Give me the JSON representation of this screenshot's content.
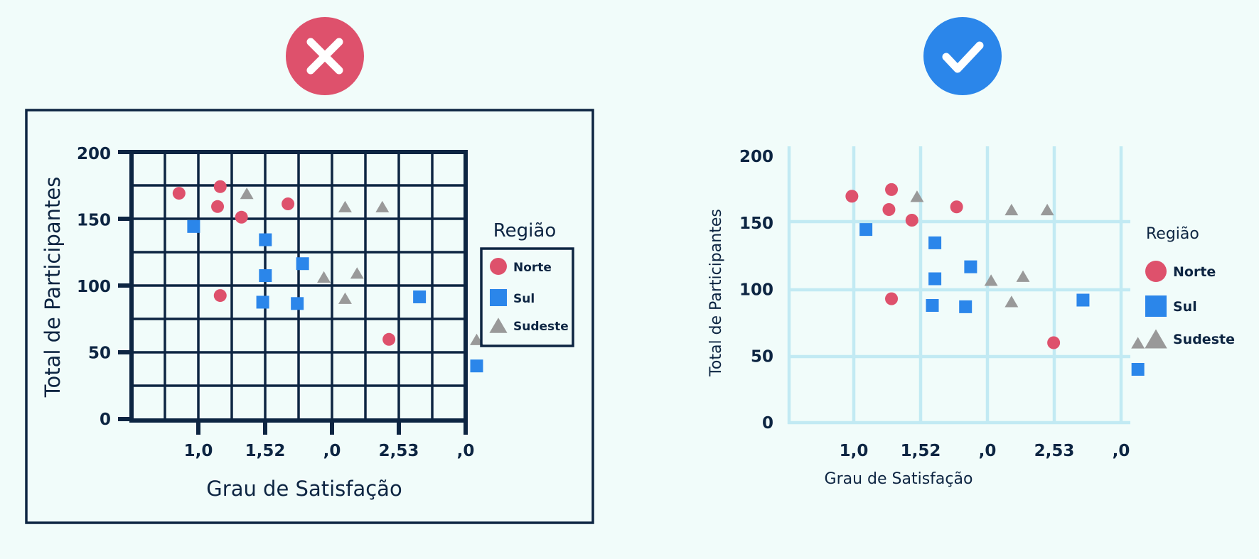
{
  "colors": {
    "background": "#f1fcfa",
    "dark": "#0d2542",
    "bad_badge": "#de516c",
    "good_badge": "#2b86ea",
    "norte": "#de516c",
    "sul": "#2b86ea",
    "sudeste": "#999999",
    "light_grid": "#c2eaf3"
  },
  "bad_badge_icon": "x-icon",
  "good_badge_icon": "check-icon",
  "chart_data": [
    {
      "type": "scatter",
      "style": "bad",
      "grid": true,
      "frame": true,
      "legend_position": "right",
      "xlabel": "Grau de Satisfação",
      "ylabel": "Total de Participantes",
      "x_ticks": [
        "1,0",
        "1,52",
        ",0",
        "2,53",
        ",0"
      ],
      "y_ticks": [
        "0",
        "50",
        "100",
        "150",
        "200"
      ],
      "ylim": [
        0,
        200
      ],
      "legend_title": "Região",
      "series": [
        {
          "name": "Norte",
          "marker": "circle",
          "points": [
            [
              0.86,
              170
            ],
            [
              1.17,
              175
            ],
            [
              1.15,
              160
            ],
            [
              1.33,
              152
            ],
            [
              1.68,
              162
            ],
            [
              1.17,
              93
            ],
            [
              2.44,
              60
            ]
          ]
        },
        {
          "name": "Sul",
          "marker": "square",
          "points": [
            [
              0.97,
              145
            ],
            [
              1.51,
              135
            ],
            [
              1.79,
              117
            ],
            [
              1.51,
              108
            ],
            [
              1.49,
              88
            ],
            [
              1.75,
              87
            ],
            [
              2.67,
              92
            ],
            [
              3.1,
              40
            ]
          ]
        },
        {
          "name": "Sudeste",
          "marker": "triangle",
          "points": [
            [
              1.37,
              170
            ],
            [
              2.11,
              160
            ],
            [
              2.39,
              160
            ],
            [
              1.95,
              107
            ],
            [
              2.2,
              110
            ],
            [
              2.11,
              91
            ],
            [
              3.1,
              60
            ]
          ]
        }
      ]
    },
    {
      "type": "scatter",
      "style": "good",
      "grid": true,
      "frame": false,
      "legend_position": "right",
      "xlabel": "Grau de Satisfação",
      "ylabel": "Total de Participantes",
      "x_ticks": [
        "1,0",
        "1,52",
        ",0",
        "2,53",
        ",0"
      ],
      "y_ticks": [
        "0",
        "50",
        "100",
        "150",
        "200"
      ],
      "ylim": [
        0,
        200
      ],
      "legend_title": "Região",
      "series": [
        {
          "name": "Norte",
          "marker": "circle",
          "points": [
            [
              0.86,
              170
            ],
            [
              1.17,
              175
            ],
            [
              1.15,
              160
            ],
            [
              1.33,
              152
            ],
            [
              1.68,
              162
            ],
            [
              1.17,
              93
            ],
            [
              2.44,
              60
            ]
          ]
        },
        {
          "name": "Sul",
          "marker": "square",
          "points": [
            [
              0.97,
              145
            ],
            [
              1.51,
              135
            ],
            [
              1.79,
              117
            ],
            [
              1.51,
              108
            ],
            [
              1.49,
              88
            ],
            [
              1.75,
              87
            ],
            [
              2.67,
              92
            ],
            [
              3.1,
              40
            ]
          ]
        },
        {
          "name": "Sudeste",
          "marker": "triangle",
          "points": [
            [
              1.37,
              170
            ],
            [
              2.11,
              160
            ],
            [
              2.39,
              160
            ],
            [
              1.95,
              107
            ],
            [
              2.2,
              110
            ],
            [
              2.11,
              91
            ],
            [
              3.1,
              60
            ]
          ]
        }
      ]
    }
  ]
}
